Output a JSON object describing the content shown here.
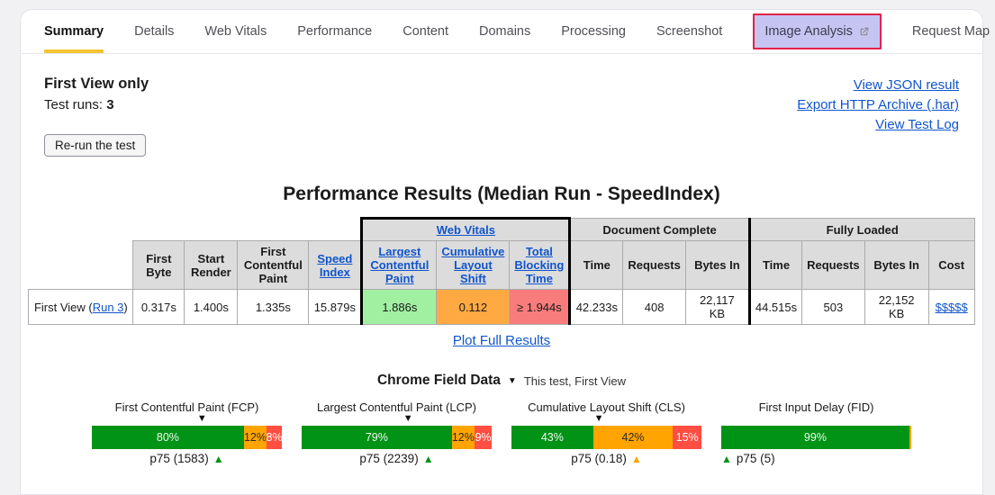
{
  "colors": {
    "accent_underline": "#f3c331",
    "link_blue": "#1155cc",
    "highlight_border_red": "#e32249",
    "highlight_fill_lavender": "#c6c4f1",
    "cell_good": "#a1f0a1",
    "cell_needs_improvement": "#ffa943",
    "cell_poor": "#f87c7c"
  },
  "tabs": {
    "items": [
      {
        "label": "Summary",
        "active": true
      },
      {
        "label": "Details"
      },
      {
        "label": "Web Vitals"
      },
      {
        "label": "Performance"
      },
      {
        "label": "Content"
      },
      {
        "label": "Domains"
      },
      {
        "label": "Processing"
      },
      {
        "label": "Screenshot"
      },
      {
        "label": "Image Analysis",
        "external": true,
        "highlighted": true
      },
      {
        "label": "Request Map",
        "external": true
      }
    ]
  },
  "header": {
    "first_view_only": "First View only",
    "test_runs_label": "Test runs: ",
    "test_runs_value": "3",
    "rerun_button": "Re-run the test"
  },
  "links": {
    "json": "View JSON result",
    "har": "Export HTTP Archive (.har)",
    "log": "View Test Log"
  },
  "results": {
    "title": "Performance Results (Median Run - SpeedIndex)",
    "plot_link": "Plot Full Results"
  },
  "table": {
    "groups": {
      "web_vitals": "Web Vitals",
      "doc_complete": "Document Complete",
      "fully_loaded": "Fully Loaded"
    },
    "headers": {
      "first_byte": "First Byte",
      "start_render": "Start Render",
      "fcp": "First Contentful Paint",
      "speed_index": "Speed Index",
      "lcp": "Largest Contentful Paint",
      "cls": "Cumulative Layout Shift",
      "tbt": "Total Blocking Time",
      "time": "Time",
      "requests": "Requests",
      "bytes_in": "Bytes In",
      "cost": "Cost"
    },
    "row": {
      "label_prefix": "First View (",
      "run_link": "Run 3",
      "label_suffix": ")",
      "first_byte": "0.317s",
      "start_render": "1.400s",
      "fcp": "1.335s",
      "speed_index": "15.879s",
      "lcp": "1.886s",
      "cls": "0.112",
      "tbt": "≥ 1.944s",
      "dc_time": "42.233s",
      "dc_requests": "408",
      "dc_bytes": "22,117 KB",
      "fl_time": "44.515s",
      "fl_requests": "503",
      "fl_bytes": "22,152 KB",
      "cost": "$$$$$"
    }
  },
  "field_data": {
    "title": "Chrome Field Data",
    "dropdown_icon": "▼",
    "selector": "This test, First View"
  },
  "chart_data": {
    "type": "bar",
    "title": "Chrome Field Data",
    "subtitle": "This test, First View",
    "layout": "four stacked horizontal distribution bars (good/needs-improvement/poor)",
    "bucket_colors": {
      "good": "#009316",
      "needs-improvement": "#ffa400",
      "poor": "#ff4e42"
    },
    "charts": [
      {
        "metric": "First Contentful Paint (FCP)",
        "segments": [
          {
            "bucket": "good",
            "pct": 80,
            "label": "80%"
          },
          {
            "bucket": "needs-improvement",
            "pct": 12,
            "label": "12%"
          },
          {
            "bucket": "poor",
            "pct": 8,
            "label": "8%"
          }
        ],
        "test_marker_pct": 58,
        "p75": {
          "label": "p75 (1583)",
          "value": 1583,
          "bucket": "good",
          "align": "center",
          "marker_first": false
        }
      },
      {
        "metric": "Largest Contentful Paint (LCP)",
        "segments": [
          {
            "bucket": "good",
            "pct": 79,
            "label": "79%"
          },
          {
            "bucket": "needs-improvement",
            "pct": 12,
            "label": "12%"
          },
          {
            "bucket": "poor",
            "pct": 9,
            "label": "9%"
          }
        ],
        "test_marker_pct": 56,
        "p75": {
          "label": "p75 (2239)",
          "value": 2239,
          "bucket": "good",
          "align": "center",
          "marker_first": false
        }
      },
      {
        "metric": "Cumulative Layout Shift (CLS)",
        "segments": [
          {
            "bucket": "good",
            "pct": 43,
            "label": "43%"
          },
          {
            "bucket": "needs-improvement",
            "pct": 42,
            "label": "42%"
          },
          {
            "bucket": "poor",
            "pct": 15,
            "label": "15%"
          }
        ],
        "test_marker_pct": 46,
        "p75": {
          "label": "p75 (0.18)",
          "value": 0.18,
          "bucket": "needs-improvement",
          "align": "center",
          "marker_first": false
        }
      },
      {
        "metric": "First Input Delay (FID)",
        "segments": [
          {
            "bucket": "good",
            "pct": 99,
            "label": "99%"
          },
          {
            "bucket": "needs-improvement",
            "pct": 1,
            "label": ""
          }
        ],
        "test_marker_pct": null,
        "p75": {
          "label": "p75 (5)",
          "value": 5,
          "bucket": "good",
          "align": "left",
          "marker_first": true
        }
      }
    ]
  }
}
